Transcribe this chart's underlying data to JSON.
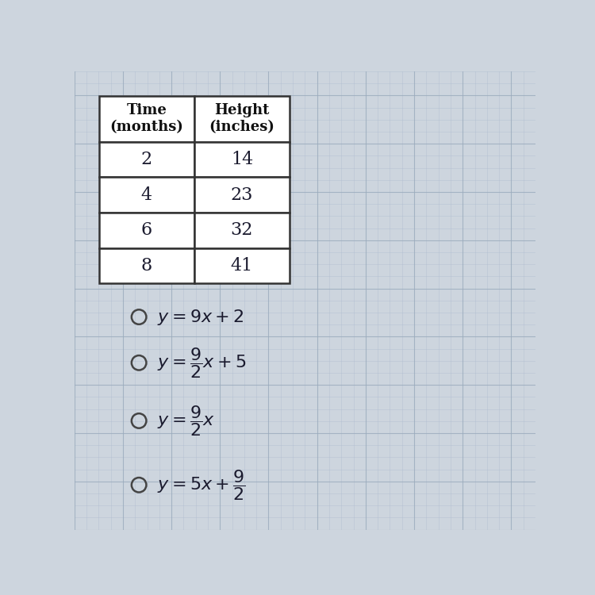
{
  "table_headers": [
    "Time\n(months)",
    "Height\n(inches)"
  ],
  "table_data": [
    [
      "2",
      "14"
    ],
    [
      "4",
      "23"
    ],
    [
      "6",
      "32"
    ],
    [
      "8",
      "41"
    ]
  ],
  "options_latex": [
    "$y = 9x + 2$",
    "$y = \\dfrac{9}{2}x + 5$",
    "$y = \\dfrac{9}{2}x$",
    "$y = 5x + \\dfrac{9}{2}$"
  ],
  "bg_color": "#cdd5de",
  "table_fill": "#ffffff",
  "border_color": "#333333",
  "text_color": "#1a1a2e",
  "header_text_color": "#111111",
  "circle_color": "#444444",
  "grid_color": "#aab8cc",
  "grid_major_color": "#99aabb"
}
